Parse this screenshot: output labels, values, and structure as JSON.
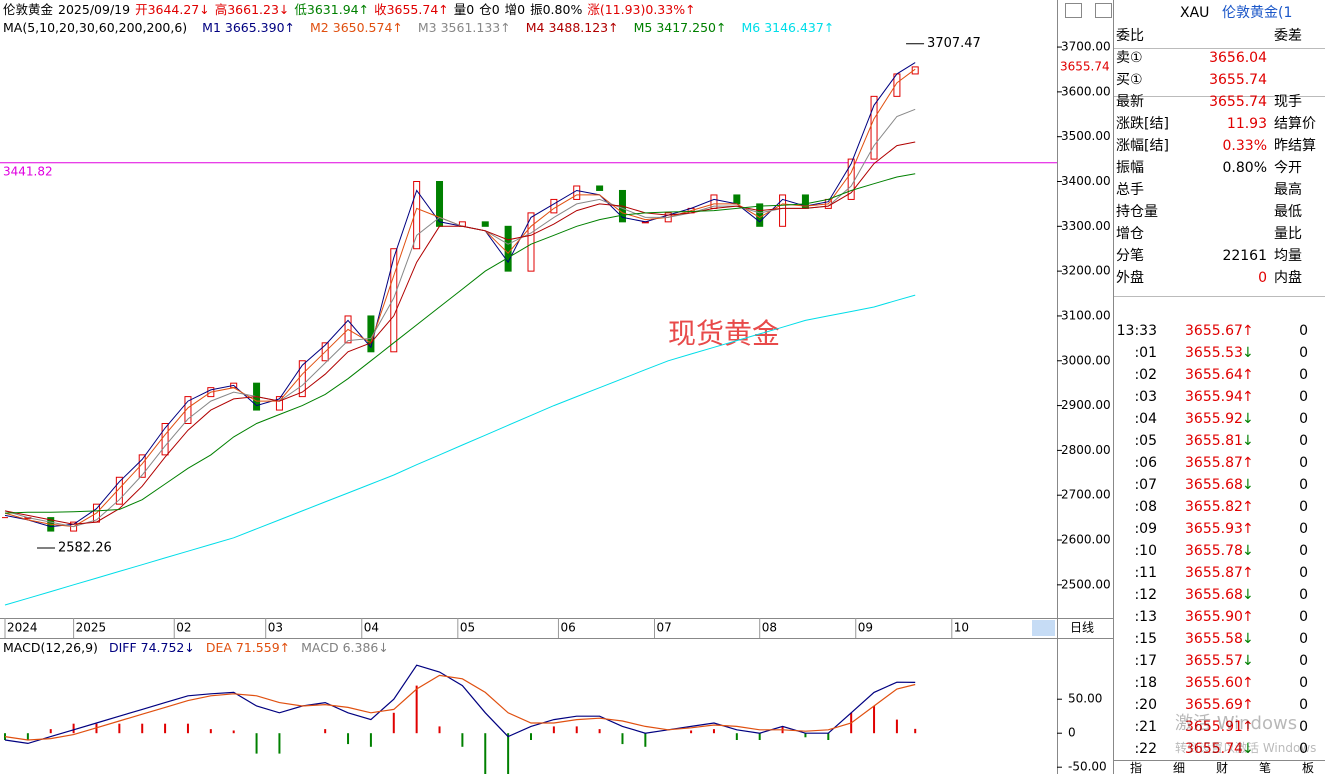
{
  "header": {
    "items": [
      {
        "text": "伦敦黄金",
        "color": "#000000"
      },
      {
        "text": "2025/09/19",
        "color": "#000000"
      },
      {
        "text": "开3644.27↓",
        "color": "#e00000"
      },
      {
        "text": "高3661.23↓",
        "color": "#e00000"
      },
      {
        "text": "低3631.94↑",
        "color": "#008000"
      },
      {
        "text": "收3655.74↑",
        "color": "#e00000"
      },
      {
        "text": "量0",
        "color": "#000000"
      },
      {
        "text": "仓0",
        "color": "#000000"
      },
      {
        "text": "增0",
        "color": "#000000"
      },
      {
        "text": "振0.80%",
        "color": "#000000"
      },
      {
        "text": "涨(11.93)0.33%↑",
        "color": "#e00000"
      }
    ]
  },
  "chart_data": [
    {
      "type": "candlestick",
      "label": "MA(5,10,20,30,60,200,200,6)",
      "period": "日线",
      "grid": false,
      "x": [
        0,
        5,
        10,
        15,
        20,
        25,
        30,
        35,
        40,
        45,
        50,
        55,
        60,
        65,
        70,
        75,
        80,
        85,
        90,
        95,
        100,
        105,
        110,
        115,
        120,
        125,
        130,
        135,
        140,
        145,
        150,
        155,
        160,
        165,
        170,
        175,
        180,
        185,
        190,
        195,
        199
      ],
      "xlim": [
        0,
        230
      ],
      "xticks": [
        {
          "value": 0,
          "label": "2024"
        },
        {
          "value": 15,
          "label": "2025"
        },
        {
          "value": 37,
          "label": "02"
        },
        {
          "value": 57,
          "label": "03"
        },
        {
          "value": 78,
          "label": "04"
        },
        {
          "value": 99,
          "label": "05"
        },
        {
          "value": 121,
          "label": "06"
        },
        {
          "value": 142,
          "label": "07"
        },
        {
          "value": 165,
          "label": "08"
        },
        {
          "value": 186,
          "label": "09"
        },
        {
          "value": 207,
          "label": "10"
        }
      ],
      "ylim": [
        2426,
        3805
      ],
      "yticks": [
        {
          "value": 2500,
          "label": "2500.00"
        },
        {
          "value": 2600,
          "label": "2600.00"
        },
        {
          "value": 2700,
          "label": "2700.00"
        },
        {
          "value": 2800,
          "label": "2800.00"
        },
        {
          "value": 2900,
          "label": "2900.00"
        },
        {
          "value": 3000,
          "label": "3000.00"
        },
        {
          "value": 3100,
          "label": "3100.00"
        },
        {
          "value": 3200,
          "label": "3200.00"
        },
        {
          "value": 3300,
          "label": "3300.00"
        },
        {
          "value": 3400,
          "label": "3400.00"
        },
        {
          "value": 3500,
          "label": "3500.00"
        },
        {
          "value": 3600,
          "label": "3600.00"
        },
        {
          "value": 3700,
          "label": "3700.00"
        }
      ],
      "close": {
        "up_color": "#e00000",
        "down_color": "#008000",
        "values": [
          2650,
          2650,
          2620,
          2640,
          2680,
          2740,
          2790,
          2860,
          2920,
          2940,
          2950,
          2890,
          2920,
          3000,
          3040,
          3100,
          3020,
          3250,
          3400,
          3300,
          3310,
          3300,
          3200,
          3330,
          3360,
          3390,
          3380,
          3310,
          3310,
          3330,
          3340,
          3370,
          3350,
          3300,
          3370,
          3340,
          3360,
          3450,
          3590,
          3640,
          3655.74
        ]
      },
      "series": [
        {
          "name": "M1",
          "label": "3665.390↑",
          "color": "#000080",
          "values": [
            2655,
            2645,
            2630,
            2635,
            2670,
            2730,
            2780,
            2850,
            2910,
            2935,
            2945,
            2900,
            2915,
            2990,
            3035,
            3090,
            3030,
            3230,
            3380,
            3310,
            3300,
            3290,
            3220,
            3320,
            3350,
            3380,
            3370,
            3320,
            3310,
            3325,
            3340,
            3360,
            3350,
            3310,
            3360,
            3345,
            3355,
            3440,
            3570,
            3640,
            3665.39
          ]
        },
        {
          "name": "M2",
          "label": "3650.574↑",
          "color": "#e05010",
          "values": [
            2660,
            2645,
            2635,
            2630,
            2660,
            2715,
            2770,
            2835,
            2895,
            2930,
            2940,
            2910,
            2910,
            2970,
            3020,
            3070,
            3040,
            3190,
            3340,
            3320,
            3300,
            3290,
            3240,
            3300,
            3340,
            3370,
            3370,
            3330,
            3315,
            3320,
            3335,
            3350,
            3350,
            3320,
            3350,
            3345,
            3350,
            3420,
            3540,
            3620,
            3650.574
          ]
        },
        {
          "name": "M3",
          "label": "3561.133↑",
          "color": "#888888",
          "values": [
            2665,
            2650,
            2640,
            2630,
            2645,
            2690,
            2745,
            2810,
            2870,
            2910,
            2930,
            2920,
            2910,
            2945,
            2995,
            3045,
            3050,
            3140,
            3280,
            3320,
            3300,
            3290,
            3260,
            3285,
            3320,
            3350,
            3360,
            3340,
            3320,
            3320,
            3330,
            3345,
            3345,
            3330,
            3340,
            3340,
            3345,
            3390,
            3480,
            3545,
            3561.133
          ]
        },
        {
          "name": "M4",
          "label": "3488.123↑",
          "color": "#b00000",
          "values": [
            2665,
            2655,
            2645,
            2635,
            2640,
            2670,
            2720,
            2785,
            2845,
            2890,
            2915,
            2920,
            2910,
            2930,
            2970,
            3020,
            3040,
            3100,
            3220,
            3300,
            3300,
            3290,
            3270,
            3280,
            3305,
            3335,
            3350,
            3345,
            3330,
            3325,
            3330,
            3340,
            3345,
            3335,
            3340,
            3340,
            3345,
            3375,
            3440,
            3480,
            3488.123
          ]
        },
        {
          "name": "M5",
          "label": "3417.250↑",
          "color": "#008000",
          "values": [
            2660,
            2662,
            2662,
            2663,
            2665,
            2668,
            2690,
            2725,
            2760,
            2790,
            2830,
            2860,
            2880,
            2900,
            2925,
            2960,
            3000,
            3040,
            3080,
            3120,
            3160,
            3200,
            3230,
            3260,
            3280,
            3300,
            3315,
            3325,
            3330,
            3332,
            3333,
            3335,
            3340,
            3345,
            3347,
            3350,
            3360,
            3380,
            3395,
            3410,
            3417.25
          ]
        },
        {
          "name": "M6",
          "label": "3146.437↑",
          "color": "#00dde8",
          "values": [
            2455,
            2470,
            2485,
            2500,
            2515,
            2530,
            2545,
            2560,
            2575,
            2590,
            2605,
            2625,
            2645,
            2665,
            2685,
            2705,
            2725,
            2745,
            2768,
            2790,
            2812,
            2834,
            2856,
            2878,
            2900,
            2920,
            2940,
            2960,
            2980,
            3000,
            3015,
            3030,
            3045,
            3060,
            3075,
            3090,
            3100,
            3110,
            3120,
            3135,
            3146.437
          ]
        }
      ],
      "hline": {
        "value": 3441.82,
        "color": "#e000e0"
      },
      "annotations": [
        {
          "x": 197,
          "value": 3707.47
        },
        {
          "x": 7,
          "value": 2582.26
        }
      ],
      "watermark": "现货黄金"
    },
    {
      "type": "macd",
      "label": "MACD(12,26,9)",
      "x": [
        0,
        5,
        10,
        15,
        20,
        25,
        30,
        35,
        40,
        45,
        50,
        55,
        60,
        65,
        70,
        75,
        80,
        85,
        90,
        95,
        100,
        105,
        110,
        115,
        120,
        125,
        130,
        135,
        140,
        145,
        150,
        155,
        160,
        165,
        170,
        175,
        180,
        185,
        190,
        195,
        199
      ],
      "xlim": [
        0,
        230
      ],
      "ylim": [
        -60,
        140
      ],
      "yticks": [
        {
          "value": 50,
          "label": "50.00"
        },
        0,
        {
          "value": -50,
          "label": "-50.00"
        }
      ],
      "series": [
        {
          "name": "DIFF",
          "label": "74.752↓",
          "color": "#000080",
          "values": [
            -10,
            -15,
            -5,
            5,
            15,
            25,
            35,
            45,
            55,
            58,
            60,
            40,
            30,
            40,
            45,
            30,
            20,
            50,
            100,
            90,
            70,
            30,
            -5,
            10,
            20,
            25,
            25,
            10,
            0,
            5,
            10,
            15,
            5,
            0,
            10,
            0,
            0,
            30,
            60,
            75,
            74.752
          ]
        },
        {
          "name": "DEA",
          "label": "71.559↑",
          "color": "#e05010",
          "values": [
            -5,
            -10,
            -8,
            -2,
            8,
            18,
            28,
            38,
            48,
            55,
            58,
            55,
            45,
            40,
            42,
            38,
            30,
            35,
            65,
            85,
            80,
            60,
            30,
            15,
            15,
            20,
            22,
            18,
            10,
            5,
            8,
            12,
            10,
            5,
            5,
            3,
            5,
            15,
            40,
            65,
            71.559
          ]
        }
      ],
      "histogram": {
        "name": "MACD",
        "label": "6.386↓",
        "color": "#808080",
        "up_color": "#e00000",
        "down_color": "#008000",
        "values": [
          -10,
          -10,
          6,
          14,
          14,
          14,
          14,
          14,
          14,
          6,
          4,
          -30,
          -30,
          0,
          6,
          -16,
          -20,
          30,
          70,
          10,
          -20,
          -60,
          -70,
          -10,
          10,
          10,
          6,
          -16,
          -20,
          0,
          4,
          6,
          -10,
          -10,
          10,
          -6,
          -10,
          30,
          40,
          20,
          6.386
        ]
      }
    }
  ],
  "quote": {
    "symbol": "XAU",
    "name": "伦敦黄金(1",
    "rows": [
      {
        "label": "委比",
        "label2": "委差"
      },
      {
        "label": "卖①",
        "value": "3656.04",
        "color": "#e00000"
      },
      {
        "label": "买①",
        "value": "3655.74",
        "color": "#e00000"
      },
      {
        "label": "最新",
        "value": "3655.74",
        "label2": "现手",
        "color": "#e00000"
      },
      {
        "label": "涨跌[结]",
        "value": "11.93",
        "label2": "结算价",
        "color": "#e00000"
      },
      {
        "label": "涨幅[结]",
        "value": "0.33%",
        "label2": "昨结算",
        "color": "#e00000"
      },
      {
        "label": "振幅",
        "value": "0.80%",
        "label2": "今开",
        "color": "#000000"
      },
      {
        "label": "总手",
        "label2": "最高"
      },
      {
        "label": "持仓量",
        "label2": "最低"
      },
      {
        "label": "增仓",
        "label2": "量比"
      },
      {
        "label": "分笔",
        "value": "22161",
        "label2": "均量",
        "color": "#000000"
      },
      {
        "label": "外盘",
        "value": "0",
        "label2": "内盘",
        "color": "#e00000"
      }
    ],
    "ticks": [
      {
        "time": "13:33",
        "price": "3655.67",
        "dir": "↑",
        "volume": 0
      },
      {
        "time": ":01",
        "price": "3655.53",
        "dir": "↓",
        "volume": 0
      },
      {
        "time": ":02",
        "price": "3655.64",
        "dir": "↑",
        "volume": 0
      },
      {
        "time": ":03",
        "price": "3655.94",
        "dir": "↑",
        "volume": 0
      },
      {
        "time": ":04",
        "price": "3655.92",
        "dir": "↓",
        "volume": 0
      },
      {
        "time": ":05",
        "price": "3655.81",
        "dir": "↓",
        "volume": 0
      },
      {
        "time": ":06",
        "price": "3655.87",
        "dir": "↑",
        "volume": 0
      },
      {
        "time": ":07",
        "price": "3655.68",
        "dir": "↓",
        "volume": 0
      },
      {
        "time": ":08",
        "price": "3655.82",
        "dir": "↑",
        "volume": 0
      },
      {
        "time": ":09",
        "price": "3655.93",
        "dir": "↑",
        "volume": 0
      },
      {
        "time": ":10",
        "price": "3655.78",
        "dir": "↓",
        "volume": 0
      },
      {
        "time": ":11",
        "price": "3655.87",
        "dir": "↑",
        "volume": 0
      },
      {
        "time": ":12",
        "price": "3655.68",
        "dir": "↓",
        "volume": 0
      },
      {
        "time": ":13",
        "price": "3655.90",
        "dir": "↑",
        "volume": 0
      },
      {
        "time": ":15",
        "price": "3655.58",
        "dir": "↓",
        "volume": 0
      },
      {
        "time": ":17",
        "price": "3655.57",
        "dir": "↓",
        "volume": 0
      },
      {
        "time": ":18",
        "price": "3655.60",
        "dir": "↑",
        "volume": 0
      },
      {
        "time": ":20",
        "price": "3655.69",
        "dir": "↑",
        "volume": 0
      },
      {
        "time": ":21",
        "price": "3655.91",
        "dir": "↑",
        "volume": 0
      },
      {
        "time": ":22",
        "price": "3655.74",
        "dir": "↓",
        "volume": 0
      }
    ],
    "tabs": [
      "指",
      "细",
      "财",
      "笔",
      "板"
    ]
  },
  "os_watermark": [
    "激活 Windows",
    "转到设置以激活 Windows"
  ]
}
